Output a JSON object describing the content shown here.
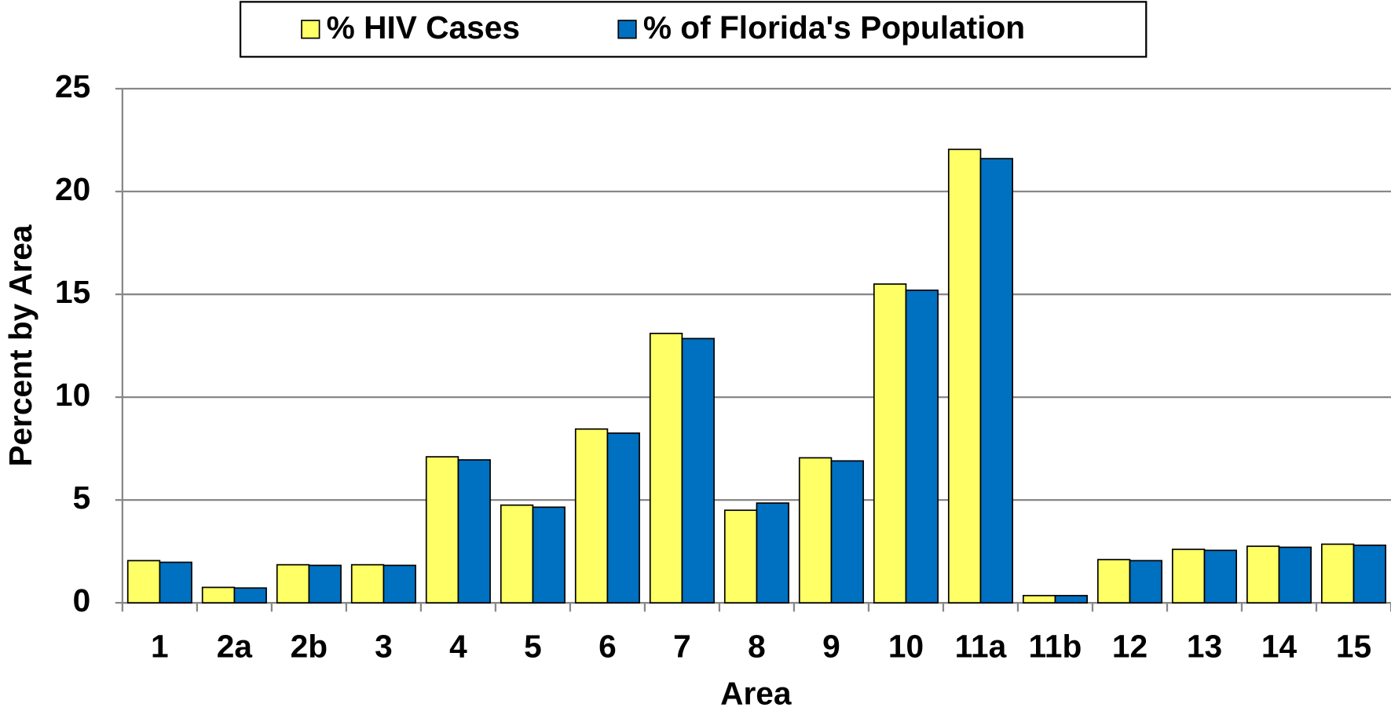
{
  "chart_data": {
    "type": "bar",
    "x_label": "Area",
    "y_label": "Percent by Area",
    "categories": [
      "1",
      "2a",
      "2b",
      "3",
      "4",
      "5",
      "6",
      "7",
      "8",
      "9",
      "10",
      "11a",
      "11b",
      "12",
      "13",
      "14",
      "15"
    ],
    "series": [
      {
        "name": "% HIV Cases",
        "color": "#ffff66",
        "values": [
          2.05,
          0.75,
          1.85,
          1.85,
          7.1,
          4.75,
          8.45,
          13.1,
          4.5,
          7.05,
          15.5,
          22.05,
          0.35,
          2.1,
          2.6,
          2.75,
          2.85
        ]
      },
      {
        "name": "% of Florida's Population",
        "color": "#0070c0",
        "values": [
          1.97,
          0.72,
          1.82,
          1.82,
          6.95,
          4.65,
          8.25,
          12.85,
          4.85,
          6.9,
          15.2,
          21.6,
          0.35,
          2.05,
          2.55,
          2.7,
          2.8
        ]
      }
    ],
    "ylim": [
      0,
      25
    ],
    "yticks": [
      0,
      5,
      10,
      15,
      20,
      25
    ],
    "grid": true,
    "legend": "top"
  }
}
